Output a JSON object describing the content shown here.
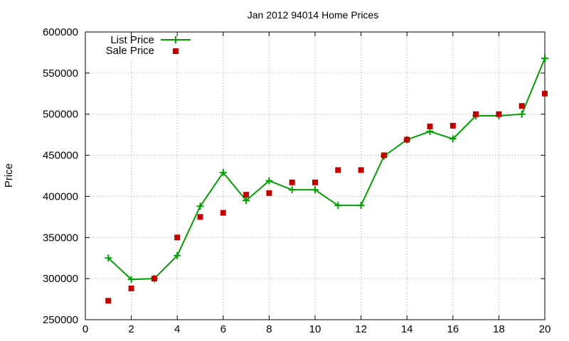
{
  "chart_data": {
    "type": "line",
    "title": "Jan 2012 94014 Home Prices",
    "xlabel": "",
    "ylabel": "Price",
    "xlim": [
      0,
      20
    ],
    "ylim": [
      250000,
      600000
    ],
    "x_ticks": [
      0,
      2,
      4,
      6,
      8,
      10,
      12,
      14,
      16,
      18,
      20
    ],
    "y_ticks": [
      250000,
      300000,
      350000,
      400000,
      450000,
      500000,
      550000,
      600000
    ],
    "grid": true,
    "legend_position": "top-left",
    "series": [
      {
        "name": "List Price",
        "style": "line-with-plus-markers",
        "color": "#00a000",
        "x": [
          1,
          2,
          3,
          4,
          5,
          6,
          7,
          8,
          9,
          10,
          11,
          12,
          13,
          14,
          15,
          16,
          17,
          18,
          19,
          20
        ],
        "y": [
          325000,
          299000,
          300000,
          328000,
          388000,
          429000,
          395000,
          419000,
          408000,
          408000,
          389000,
          389000,
          449000,
          469000,
          479000,
          470000,
          498000,
          498000,
          500000,
          568000
        ]
      },
      {
        "name": "Sale Price",
        "style": "square-markers",
        "color": "#c00000",
        "x": [
          1,
          2,
          3,
          4,
          5,
          6,
          7,
          8,
          9,
          10,
          11,
          12,
          13,
          14,
          15,
          16,
          17,
          18,
          19,
          20
        ],
        "y": [
          273000,
          288000,
          300000,
          350000,
          375000,
          380000,
          402000,
          404000,
          417000,
          417000,
          432000,
          432000,
          450000,
          469000,
          485000,
          486000,
          500000,
          500000,
          510000,
          525000
        ]
      }
    ]
  }
}
